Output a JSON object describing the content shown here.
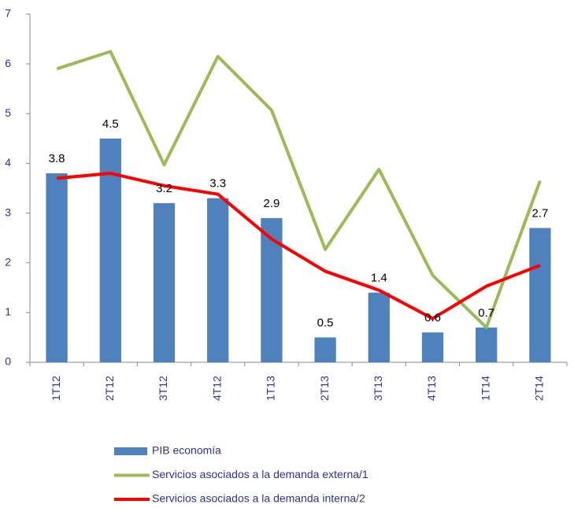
{
  "chart_data": {
    "type": "bar",
    "categories": [
      "1T12",
      "2T12",
      "3T12",
      "4T12",
      "1T13",
      "2T13",
      "3T13",
      "4T13",
      "1T14",
      "2T14"
    ],
    "series": [
      {
        "name": "PIB economía",
        "type": "bar",
        "color": "#4f81bd",
        "values": [
          3.8,
          4.5,
          3.2,
          3.3,
          2.9,
          0.5,
          1.4,
          0.6,
          0.7,
          2.7
        ]
      },
      {
        "name": "Servicios asociados a la demanda externa/1",
        "type": "line",
        "color": "#9bbb59",
        "values": [
          5.9,
          6.25,
          3.97,
          6.15,
          5.07,
          2.27,
          3.88,
          1.75,
          0.7,
          3.65
        ]
      },
      {
        "name": "Servicios asociados a la demanda interna/2",
        "type": "line",
        "color": "#ff0000",
        "values": [
          3.7,
          3.8,
          3.55,
          3.38,
          2.48,
          1.83,
          1.45,
          0.88,
          1.53,
          1.95
        ]
      }
    ],
    "ylim": [
      0,
      7
    ],
    "yticks": [
      0,
      1,
      2,
      3,
      4,
      5,
      6,
      7
    ],
    "grid": false,
    "legend": "bottom"
  }
}
